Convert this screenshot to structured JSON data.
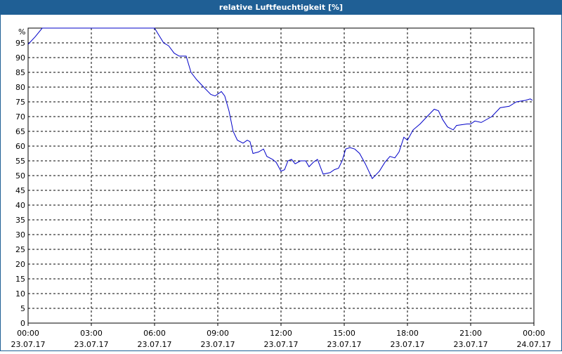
{
  "chart_data": {
    "type": "line",
    "title": "relative Luftfeuchtigkeit [%]",
    "y_unit": "%",
    "color": "#0000c8",
    "xlim": [
      0,
      24
    ],
    "ylim": [
      0,
      100
    ],
    "grid": true,
    "yticks": [
      0,
      5,
      10,
      15,
      20,
      25,
      30,
      35,
      40,
      45,
      50,
      55,
      60,
      65,
      70,
      75,
      80,
      85,
      90,
      95
    ],
    "xticks": [
      {
        "value": 0,
        "label": "00:00"
      },
      {
        "value": 3,
        "label": "03:00"
      },
      {
        "value": 6,
        "label": "06:00"
      },
      {
        "value": 9,
        "label": "09:00"
      },
      {
        "value": 12,
        "label": "12:00"
      },
      {
        "value": 15,
        "label": "15:00"
      },
      {
        "value": 18,
        "label": "18:00"
      },
      {
        "value": 21,
        "label": "21:00"
      },
      {
        "value": 24,
        "label": "00:00"
      }
    ],
    "xtick_dates": [
      "23.07.17",
      "23.07.17",
      "23.07.17",
      "23.07.17",
      "23.07.17",
      "23.07.17",
      "23.07.17",
      "23.07.17",
      "24.07.17"
    ],
    "x": [
      0,
      0.33,
      0.67,
      6,
      6.17,
      6.43,
      6.67,
      6.93,
      7.17,
      7.5,
      7.73,
      8,
      8.33,
      8.67,
      8.87,
      9.17,
      9.33,
      9.53,
      9.73,
      9.93,
      10.2,
      10.4,
      10.53,
      10.67,
      10.93,
      11.17,
      11.33,
      11.6,
      11.77,
      12,
      12.17,
      12.33,
      12.5,
      12.67,
      12.93,
      13.17,
      13.33,
      13.53,
      13.73,
      14,
      14.33,
      14.53,
      14.73,
      14.9,
      15.07,
      15.27,
      15.5,
      15.73,
      16,
      16.33,
      16.67,
      16.93,
      17.17,
      17.4,
      17.6,
      17.83,
      18,
      18.27,
      18.6,
      18.93,
      19.27,
      19.47,
      19.67,
      19.9,
      20.17,
      20.33,
      20.83,
      21,
      21.2,
      21.5,
      22,
      22.4,
      22.83,
      23.17,
      23.6,
      23.83,
      23.93
    ],
    "values": [
      94.5,
      97,
      100,
      100,
      98,
      95,
      94,
      91.5,
      90.5,
      90.5,
      85,
      82.5,
      80,
      77.5,
      77,
      78.5,
      77,
      72,
      65,
      62,
      61,
      62,
      61.5,
      57.5,
      58,
      59,
      56.5,
      55.5,
      54.5,
      51.5,
      52,
      55,
      55.5,
      54,
      55,
      55,
      53,
      54.5,
      55.5,
      50.5,
      51,
      52,
      52.5,
      55,
      59,
      59.5,
      59,
      57.5,
      54,
      49,
      51.5,
      54.5,
      56.5,
      56,
      58,
      63,
      62,
      65.5,
      67.5,
      70,
      72.5,
      72,
      69,
      66.5,
      65.5,
      67,
      67.5,
      67.5,
      68.5,
      68,
      70,
      73,
      73.5,
      75,
      75.5,
      76,
      75.5
    ]
  }
}
